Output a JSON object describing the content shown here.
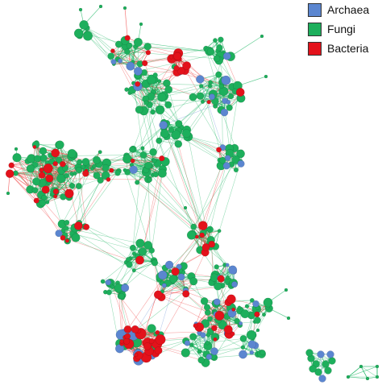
{
  "legend": {
    "items": [
      {
        "label": "Archaea",
        "color": "#5b86d0"
      },
      {
        "label": "Fungi",
        "color": "#1daf5c"
      },
      {
        "label": "Bacteria",
        "color": "#e3121b"
      }
    ]
  },
  "colors": {
    "archaea": "#5b86d0",
    "fungi": "#1daf5c",
    "bacteria": "#e3121b",
    "fungi_edge": "#21b866",
    "bacteria_edge": "#ef3d3d",
    "archaea_edge": "#6b93d8"
  }
}
